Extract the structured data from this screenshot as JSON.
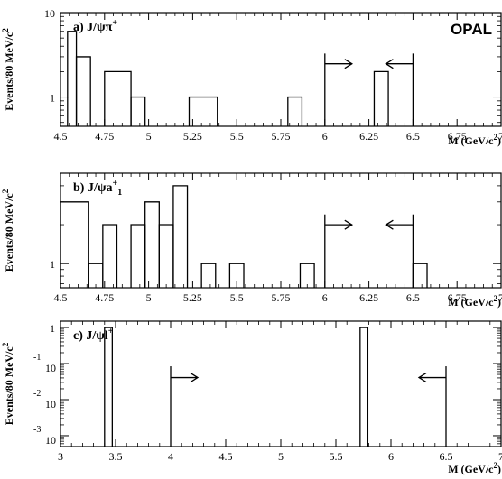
{
  "chart_data": [
    {
      "type": "histogram",
      "title": "a) J/ψπ",
      "title_sup": "+",
      "experiment": "OPAL",
      "ylabel": "Events/80 MeV/c",
      "ylabel_sup": "2",
      "xlabel": "M (GeV/c",
      "xlabel_sup": "2",
      "xlabel_close": ")",
      "xlim": [
        4.5,
        7.0
      ],
      "ylim": [
        0.45,
        10
      ],
      "y_scale": "log",
      "x_ticks": [
        "4.5",
        "4.75",
        "5",
        "5.25",
        "5.5",
        "5.75",
        "6",
        "6.25",
        "6.5",
        "6.75",
        "7"
      ],
      "x_tick_values": [
        4.5,
        4.75,
        5,
        5.25,
        5.5,
        5.75,
        6,
        6.25,
        6.5,
        6.75,
        7
      ],
      "y_ticks": [
        "1",
        "10"
      ],
      "y_tick_values": [
        1,
        10
      ],
      "bins": [
        {
          "x": [
            4.54,
            4.59
          ],
          "y": 6
        },
        {
          "x": [
            4.59,
            4.67
          ],
          "y": 3
        },
        {
          "x": [
            4.75,
            4.9
          ],
          "y": 2
        },
        {
          "x": [
            4.9,
            4.98
          ],
          "y": 1
        },
        {
          "x": [
            5.23,
            5.39
          ],
          "y": 1
        },
        {
          "x": [
            5.79,
            5.87
          ],
          "y": 1
        },
        {
          "x": [
            6.28,
            6.36
          ],
          "y": 2
        }
      ],
      "window": {
        "low": 6.0,
        "high": 6.5
      }
    },
    {
      "type": "histogram",
      "title": "b) J/ψa",
      "title_sup": "+",
      "title_sub": "1",
      "ylabel": "Events/80 MeV/c",
      "ylabel_sup": "2",
      "xlabel": "M (GeV/c",
      "xlabel_sup": "2",
      "xlabel_close": ")",
      "xlim": [
        4.5,
        7.0
      ],
      "ylim": [
        0.65,
        5.0
      ],
      "y_scale": "log",
      "x_ticks": [
        "4.5",
        "4.75",
        "5",
        "5.25",
        "5.5",
        "5.75",
        "6",
        "6.25",
        "6.5",
        "6.75",
        "7"
      ],
      "x_tick_values": [
        4.5,
        4.75,
        5,
        5.25,
        5.5,
        5.75,
        6,
        6.25,
        6.5,
        6.75,
        7
      ],
      "y_ticks": [
        "1"
      ],
      "y_tick_values": [
        1
      ],
      "bins": [
        {
          "x": [
            4.5,
            4.66
          ],
          "y": 3
        },
        {
          "x": [
            4.66,
            4.74
          ],
          "y": 1
        },
        {
          "x": [
            4.74,
            4.82
          ],
          "y": 2
        },
        {
          "x": [
            4.9,
            4.98
          ],
          "y": 2
        },
        {
          "x": [
            4.98,
            5.06
          ],
          "y": 3
        },
        {
          "x": [
            5.06,
            5.14
          ],
          "y": 2
        },
        {
          "x": [
            5.14,
            5.22
          ],
          "y": 4
        },
        {
          "x": [
            5.3,
            5.38
          ],
          "y": 1
        },
        {
          "x": [
            5.46,
            5.54
          ],
          "y": 1
        },
        {
          "x": [
            5.86,
            5.94
          ],
          "y": 1
        },
        {
          "x": [
            6.5,
            6.58
          ],
          "y": 1
        }
      ],
      "window": {
        "low": 6.0,
        "high": 6.5
      }
    },
    {
      "type": "histogram",
      "title": "c) J/ψl",
      "title_sup": "+",
      "ylabel": "Events/80 MeV/c",
      "ylabel_sup": "2",
      "xlabel": "M (GeV/c",
      "xlabel_sup": "2",
      "xlabel_close": ")",
      "xlim": [
        3.0,
        7.0
      ],
      "ylim": [
        0.0005,
        1.5
      ],
      "y_scale": "log",
      "x_ticks": [
        "3",
        "3.5",
        "4",
        "4.5",
        "5",
        "5.5",
        "6",
        "6.5",
        "7"
      ],
      "x_tick_values": [
        3,
        3.5,
        4,
        4.5,
        5,
        5.5,
        6,
        6.5,
        7
      ],
      "y_tick_labels": [
        {
          "value": 1,
          "base": "1",
          "exp": ""
        },
        {
          "value": 0.1,
          "base": "10",
          "exp": "-1"
        },
        {
          "value": 0.01,
          "base": "10",
          "exp": "-2"
        },
        {
          "value": 0.001,
          "base": "10",
          "exp": "-3"
        }
      ],
      "bins": [
        {
          "x": [
            3.4,
            3.47
          ],
          "y": 1
        },
        {
          "x": [
            5.72,
            5.79
          ],
          "y": 1
        }
      ],
      "window": {
        "low": 4.0,
        "high": 6.5
      }
    }
  ]
}
